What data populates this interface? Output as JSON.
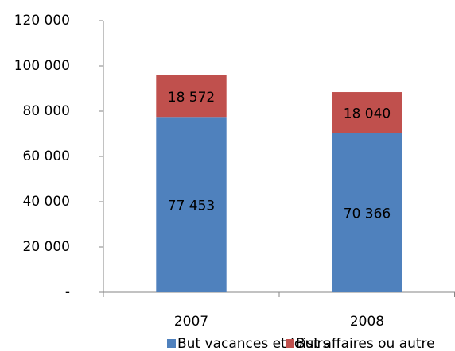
{
  "chart_data": {
    "type": "stacked-bar",
    "categories": [
      "2007",
      "2008"
    ],
    "series": [
      {
        "name": "But vacances et loisirs",
        "color": "#4f81bd",
        "values": [
          77453,
          70366
        ],
        "value_labels": [
          "77 453",
          "70 366"
        ]
      },
      {
        "name": "But affaires ou autre",
        "color": "#c0504d",
        "values": [
          18572,
          18040
        ],
        "value_labels": [
          "18 572",
          "18 040"
        ]
      }
    ],
    "ylim": [
      0,
      120000
    ],
    "yticks": [
      {
        "value": 0,
        "label": "-"
      },
      {
        "value": 20000,
        "label": "20 000"
      },
      {
        "value": 40000,
        "label": "40 000"
      },
      {
        "value": 60000,
        "label": "60 000"
      },
      {
        "value": 80000,
        "label": "80 000"
      },
      {
        "value": 100000,
        "label": "100 000"
      },
      {
        "value": 120000,
        "label": "120 000"
      }
    ],
    "grid": false,
    "legend": "bottom"
  }
}
